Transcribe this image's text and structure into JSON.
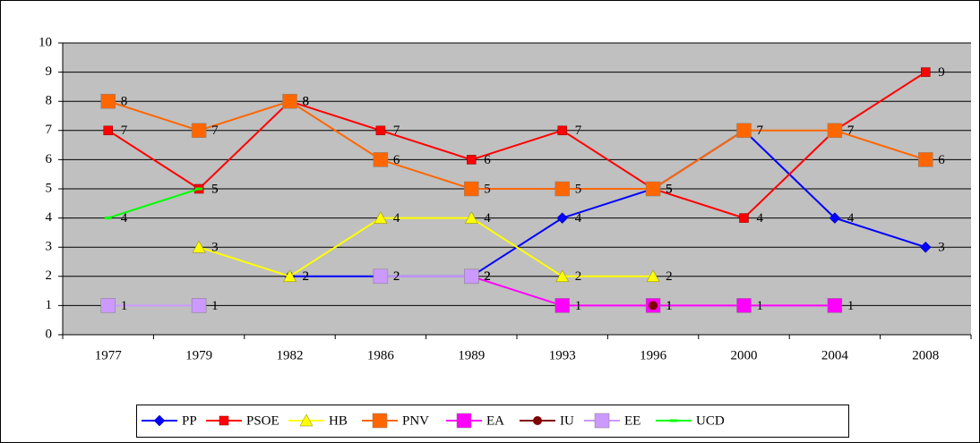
{
  "chart_data": {
    "type": "line",
    "categories": [
      "1977",
      "1979",
      "1982",
      "1986",
      "1989",
      "1993",
      "1996",
      "2000",
      "2004",
      "2008"
    ],
    "series": [
      {
        "name": "PP",
        "color": "#0000ff",
        "marker": "diamond",
        "values": [
          null,
          null,
          2,
          2,
          2,
          4,
          5,
          7,
          4,
          3
        ]
      },
      {
        "name": "PSOE",
        "color": "#ff0000",
        "marker": "square",
        "values": [
          7,
          5,
          8,
          7,
          6,
          7,
          5,
          4,
          7,
          9
        ]
      },
      {
        "name": "HB",
        "color": "#ffff00",
        "marker": "triangle",
        "values": [
          null,
          3,
          2,
          4,
          4,
          2,
          2,
          null,
          null,
          null
        ]
      },
      {
        "name": "PNV",
        "color": "#ff6600",
        "marker": "bigsquare",
        "values": [
          8,
          7,
          8,
          6,
          5,
          5,
          5,
          7,
          7,
          6
        ]
      },
      {
        "name": "EA",
        "color": "#ff00ff",
        "marker": "bigsquare",
        "values": [
          null,
          null,
          null,
          null,
          2,
          1,
          1,
          1,
          1,
          null
        ]
      },
      {
        "name": "IU",
        "color": "#800000",
        "marker": "circle",
        "values": [
          null,
          null,
          null,
          null,
          null,
          null,
          1,
          null,
          null,
          null
        ]
      },
      {
        "name": "EE",
        "color": "#cc99ff",
        "marker": "bigsquare",
        "values": [
          1,
          1,
          null,
          2,
          2,
          null,
          null,
          null,
          null,
          null
        ]
      },
      {
        "name": "UCD",
        "color": "#00ff00",
        "marker": "dash",
        "values": [
          4,
          5,
          null,
          null,
          null,
          null,
          null,
          null,
          null,
          null
        ]
      }
    ],
    "ylim": [
      0,
      10
    ],
    "yticks": [
      0,
      1,
      2,
      3,
      4,
      5,
      6,
      7,
      8,
      9,
      10
    ],
    "grid": true,
    "legend": "bottom"
  }
}
